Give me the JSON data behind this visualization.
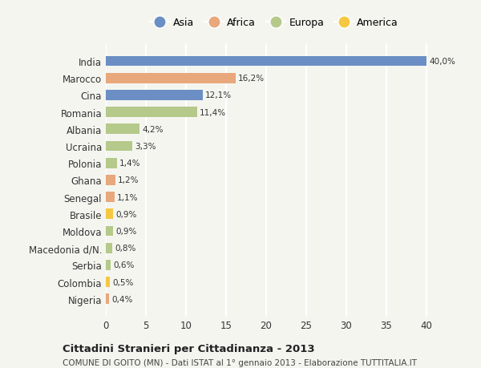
{
  "categories": [
    "India",
    "Marocco",
    "Cina",
    "Romania",
    "Albania",
    "Ucraina",
    "Polonia",
    "Ghana",
    "Senegal",
    "Brasile",
    "Moldova",
    "Macedonia d/N.",
    "Serbia",
    "Colombia",
    "Nigeria"
  ],
  "values": [
    40.0,
    16.2,
    12.1,
    11.4,
    4.2,
    3.3,
    1.4,
    1.2,
    1.1,
    0.9,
    0.9,
    0.8,
    0.6,
    0.5,
    0.4
  ],
  "labels": [
    "40,0%",
    "16,2%",
    "12,1%",
    "11,4%",
    "4,2%",
    "3,3%",
    "1,4%",
    "1,2%",
    "1,1%",
    "0,9%",
    "0,9%",
    "0,8%",
    "0,6%",
    "0,5%",
    "0,4%"
  ],
  "colors": [
    "#6b8fc4",
    "#e8a87c",
    "#6b8fc4",
    "#b5c98a",
    "#b5c98a",
    "#b5c98a",
    "#b5c98a",
    "#e8a87c",
    "#e8a87c",
    "#f5c842",
    "#b5c98a",
    "#b5c98a",
    "#b5c98a",
    "#f5c842",
    "#e8a87c"
  ],
  "legend_labels": [
    "Asia",
    "Africa",
    "Europa",
    "America"
  ],
  "legend_colors": [
    "#6b8fc4",
    "#e8a87c",
    "#b5c98a",
    "#f5c842"
  ],
  "title1": "Cittadini Stranieri per Cittadinanza - 2013",
  "title2": "COMUNE DI GOITO (MN) - Dati ISTAT al 1° gennaio 2013 - Elaborazione TUTTITALIA.IT",
  "xlim": [
    0,
    42
  ],
  "xticks": [
    0,
    5,
    10,
    15,
    20,
    25,
    30,
    35,
    40
  ],
  "background_color": "#f5f5f0",
  "grid_color": "#ffffff"
}
